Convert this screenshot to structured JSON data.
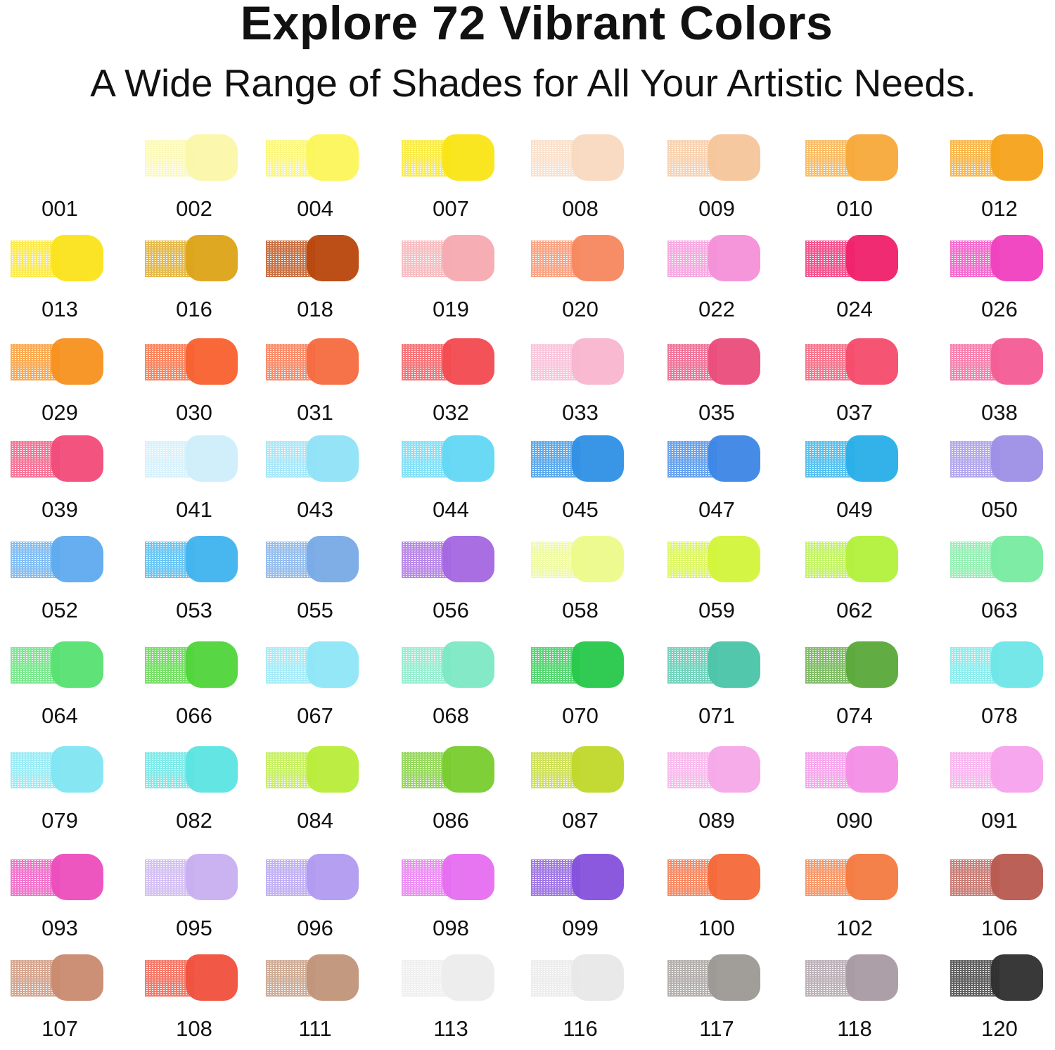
{
  "header": {
    "title": "Explore 72 Vibrant Colors",
    "subtitle": "A Wide Range of Shades for All Your Artistic Needs."
  },
  "swatches": [
    {
      "code": "001",
      "color": "#fefefe"
    },
    {
      "code": "002",
      "color": "#fbf7a8"
    },
    {
      "code": "004",
      "color": "#fbf55a"
    },
    {
      "code": "007",
      "color": "#f9e514"
    },
    {
      "code": "008",
      "color": "#f8d9bf"
    },
    {
      "code": "009",
      "color": "#f6c59a"
    },
    {
      "code": "010",
      "color": "#f7a93a"
    },
    {
      "code": "012",
      "color": "#f6a21a"
    },
    {
      "code": "013",
      "color": "#fbe31a"
    },
    {
      "code": "016",
      "color": "#dca316"
    },
    {
      "code": "018",
      "color": "#b8460c"
    },
    {
      "code": "019",
      "color": "#f5aab0"
    },
    {
      "code": "020",
      "color": "#f7875e"
    },
    {
      "code": "022",
      "color": "#f48fd8"
    },
    {
      "code": "024",
      "color": "#f0206a"
    },
    {
      "code": "026",
      "color": "#ef3fbf"
    },
    {
      "code": "029",
      "color": "#f7901e"
    },
    {
      "code": "030",
      "color": "#f8602e"
    },
    {
      "code": "031",
      "color": "#f66a3f"
    },
    {
      "code": "032",
      "color": "#f24a4f"
    },
    {
      "code": "033",
      "color": "#f8b5cf"
    },
    {
      "code": "035",
      "color": "#ea4c7a"
    },
    {
      "code": "037",
      "color": "#f44b6a"
    },
    {
      "code": "038",
      "color": "#f35c95"
    },
    {
      "code": "039",
      "color": "#f14b78"
    },
    {
      "code": "041",
      "color": "#cdeefa"
    },
    {
      "code": "043",
      "color": "#8fe1f7"
    },
    {
      "code": "044",
      "color": "#62d7f4"
    },
    {
      "code": "045",
      "color": "#2e8fe5"
    },
    {
      "code": "047",
      "color": "#3c86e6"
    },
    {
      "code": "049",
      "color": "#28aee8"
    },
    {
      "code": "050",
      "color": "#9d8ee6"
    },
    {
      "code": "052",
      "color": "#5eaaee"
    },
    {
      "code": "053",
      "color": "#3fb3ee"
    },
    {
      "code": "055",
      "color": "#78aae6"
    },
    {
      "code": "056",
      "color": "#a366e0"
    },
    {
      "code": "058",
      "color": "#ecfa8a"
    },
    {
      "code": "059",
      "color": "#d3f43a"
    },
    {
      "code": "062",
      "color": "#b2f03c"
    },
    {
      "code": "063",
      "color": "#78eba0"
    },
    {
      "code": "064",
      "color": "#56e070"
    },
    {
      "code": "066",
      "color": "#4fd43a"
    },
    {
      "code": "067",
      "color": "#8de6f5"
    },
    {
      "code": "068",
      "color": "#7ce8c4"
    },
    {
      "code": "070",
      "color": "#26c84a"
    },
    {
      "code": "071",
      "color": "#4ac4a8"
    },
    {
      "code": "074",
      "color": "#5aa83a"
    },
    {
      "code": "078",
      "color": "#6ee6e8"
    },
    {
      "code": "079",
      "color": "#7fe6f2"
    },
    {
      "code": "082",
      "color": "#5ae4e2"
    },
    {
      "code": "084",
      "color": "#b8ec38"
    },
    {
      "code": "086",
      "color": "#78cc2e"
    },
    {
      "code": "087",
      "color": "#c0d82a"
    },
    {
      "code": "089",
      "color": "#f6a8e8"
    },
    {
      "code": "090",
      "color": "#f38ee6"
    },
    {
      "code": "091",
      "color": "#f7a2ec"
    },
    {
      "code": "093",
      "color": "#ec4cbc"
    },
    {
      "code": "095",
      "color": "#c8aef0"
    },
    {
      "code": "096",
      "color": "#b09af0"
    },
    {
      "code": "098",
      "color": "#e66ef0"
    },
    {
      "code": "099",
      "color": "#8450dc"
    },
    {
      "code": "100",
      "color": "#f46838"
    },
    {
      "code": "102",
      "color": "#f47a40"
    },
    {
      "code": "106",
      "color": "#b8584e"
    },
    {
      "code": "107",
      "color": "#c88a6e"
    },
    {
      "code": "108",
      "color": "#f0503c"
    },
    {
      "code": "111",
      "color": "#c09478"
    },
    {
      "code": "113",
      "color": "#ececec"
    },
    {
      "code": "116",
      "color": "#e8e8e8"
    },
    {
      "code": "117",
      "color": "#9c9894"
    },
    {
      "code": "118",
      "color": "#a89aa2"
    },
    {
      "code": "120",
      "color": "#2e2e2e"
    }
  ]
}
